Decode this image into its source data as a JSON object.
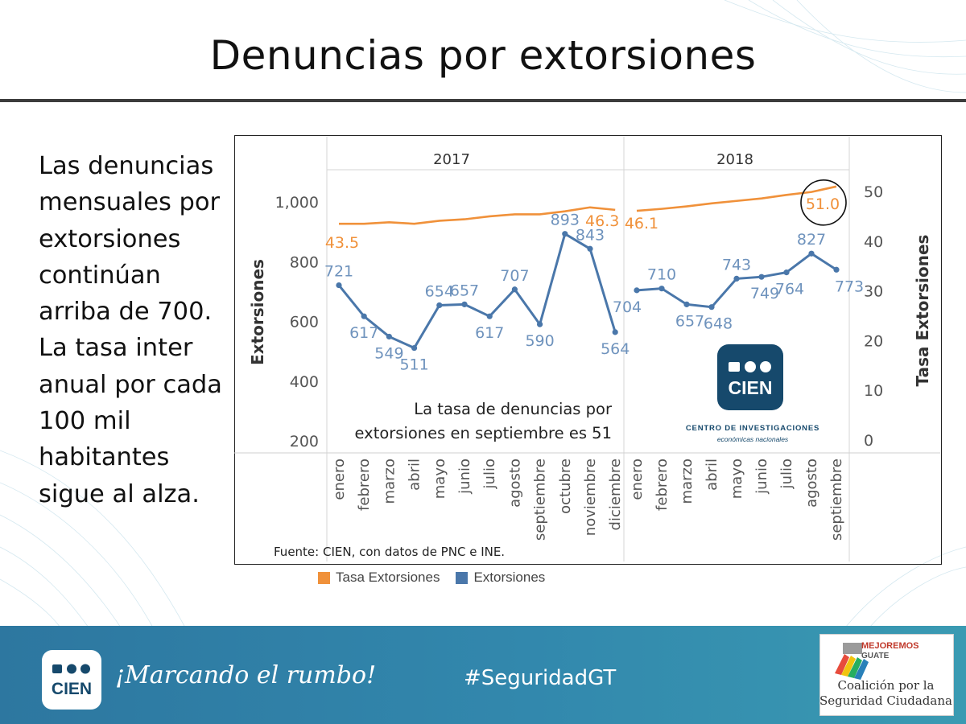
{
  "slide": {
    "title": "Denuncias por extorsiones",
    "side_text": "Las denuncias mensuales por extorsiones continúan arriba de 700. La tasa inter anual por cada 100 mil habitantes sigue al alza."
  },
  "chart_data": {
    "type": "line",
    "panels": [
      "2017",
      "2018"
    ],
    "categories": {
      "2017": [
        "enero",
        "febrero",
        "marzo",
        "abril",
        "mayo",
        "junio",
        "julio",
        "agosto",
        "septiembre",
        "octubre",
        "noviembre",
        "diciembre"
      ],
      "2018": [
        "enero",
        "febrero",
        "marzo",
        "abril",
        "mayo",
        "junio",
        "julio",
        "agosto",
        "septiembre"
      ]
    },
    "series": [
      {
        "name": "Extorsiones",
        "color": "#4a77aa",
        "axis": "left",
        "values": {
          "2017": [
            721,
            617,
            549,
            511,
            654,
            657,
            617,
            707,
            590,
            893,
            843,
            564
          ],
          "2018": [
            704,
            710,
            657,
            648,
            743,
            749,
            764,
            827,
            773
          ]
        }
      },
      {
        "name": "Tasa Extorsiones",
        "color": "#f0913a",
        "axis": "right",
        "values": {
          "2017": [
            43.5,
            43.5,
            43.8,
            43.5,
            44.1,
            44.4,
            45.0,
            45.4,
            45.4,
            46.0,
            46.8,
            46.3
          ],
          "2018": [
            46.1,
            46.5,
            47.0,
            47.6,
            48.1,
            48.6,
            49.3,
            49.9,
            51.0
          ]
        },
        "labels": {
          "2017": {
            "0": "43.5",
            "11": "46.3"
          },
          "2018": {
            "0": "46.1",
            "8": "51.0"
          }
        }
      }
    ],
    "ylabel_left": "Extorsiones",
    "ylabel_right": "Tasa Extorsiones",
    "yticks_left": [
      "200",
      "400",
      "600",
      "800",
      "1,000"
    ],
    "yticks_right": [
      "0",
      "10",
      "20",
      "30",
      "40",
      "50"
    ],
    "ylim_left": [
      200,
      1080
    ],
    "ylim_right": [
      -2.6,
      55
    ],
    "legend": "bottom-left",
    "highlight": {
      "panel": "2018",
      "index": 8,
      "series": "Tasa Extorsiones"
    }
  },
  "annotation": {
    "note": "La tasa de denuncias por extorsiones en septiembre es 51",
    "source": "Fuente: CIEN, con datos de PNC e INE."
  },
  "logo": {
    "name": "CIEN",
    "caption1": "CENTRO DE INVESTIGACIONES",
    "caption2": "económicas nacionales"
  },
  "footer": {
    "motto": "¡Marcando el rumbo!",
    "hashtag": "#SeguridadGT",
    "partner_brand1": "MEJOREMOS",
    "partner_brand2": "GUATE",
    "partner_line": "Coalición por la Seguridad Ciudadana"
  }
}
